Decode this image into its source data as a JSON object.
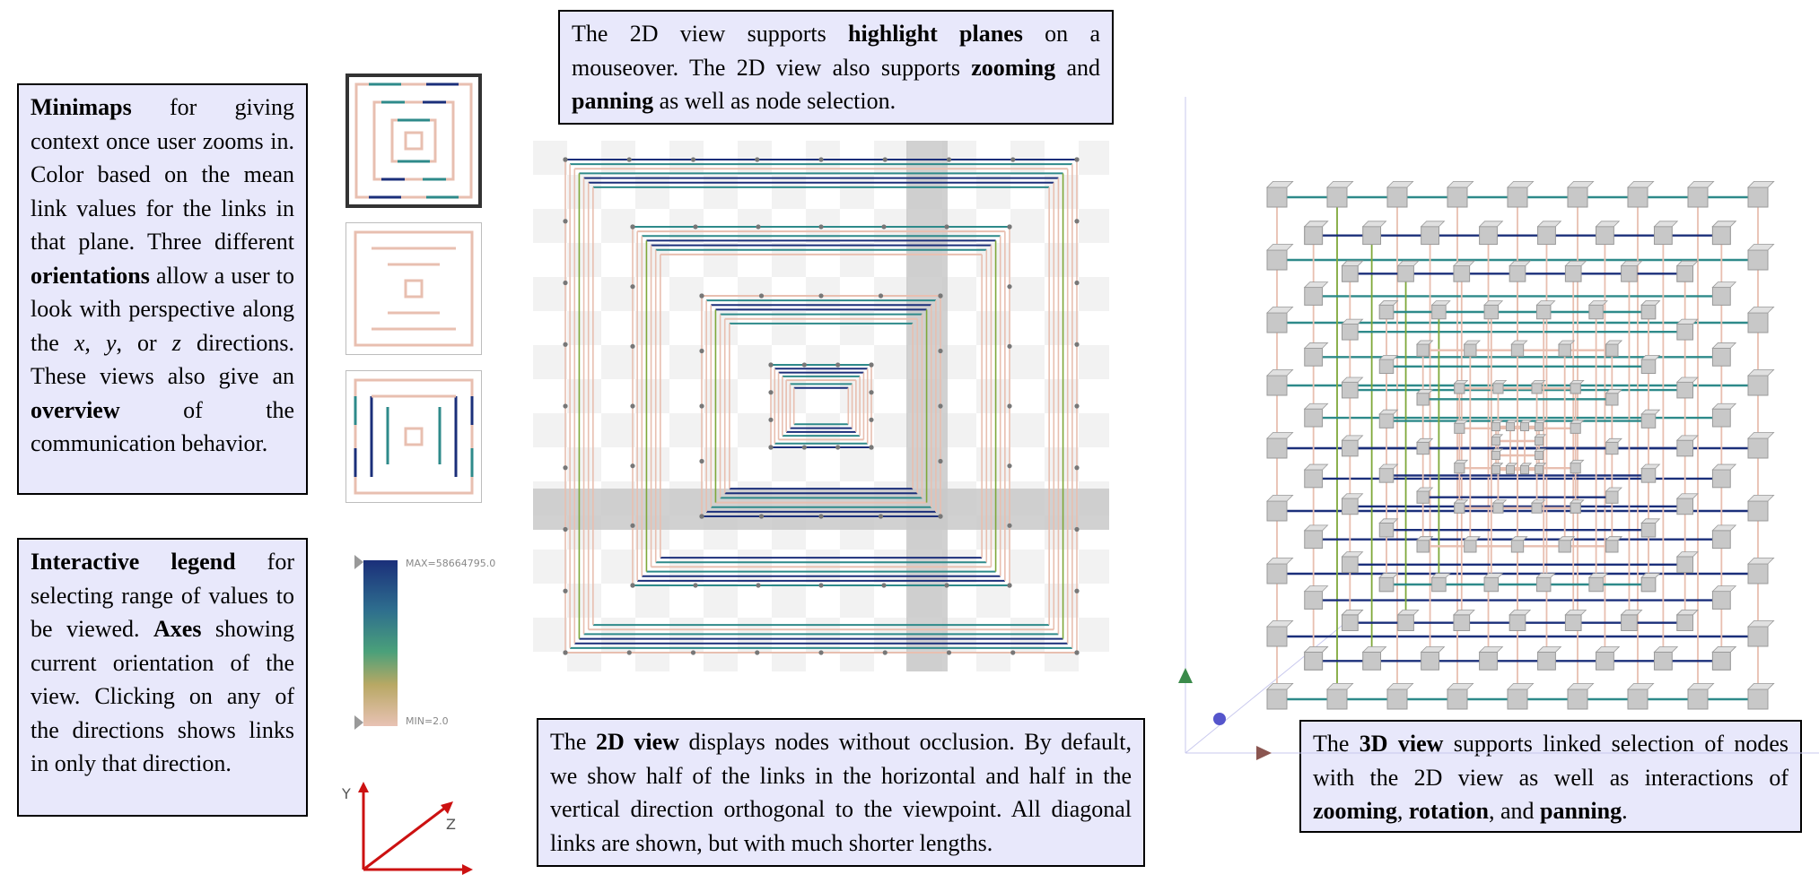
{
  "notes": {
    "minimaps": {
      "s1": "Minimaps",
      "s2": " for giving context once user zooms in. Color based on the mean link values for the links in that plane. Three different ",
      "s3": "orientations",
      "s4": " allow a user to look with perspective along the ",
      "x": "x",
      "s5": ", ",
      "y": "y",
      "s6": ", or ",
      "z": "z",
      "s7": " directions. These views also give an ",
      "s8": "overview",
      "s9": " of the communication behavior."
    },
    "legend": {
      "s1": "Interactive legend",
      "s2": " for selecting range of values to be viewed. ",
      "s3": "Axes",
      "s4": " showing current orientation of the view. Clicking on any of the directions shows links in only that direction."
    },
    "highlight": {
      "s1": "The 2D view supports ",
      "s2": "highlight planes",
      "s3": " on a mouseover. The 2D view also supports ",
      "s4": "zooming",
      "s5": " and ",
      "s6": "panning",
      "s7": " as well as node selection."
    },
    "view2d": {
      "s1": "The ",
      "s2": "2D view",
      "s3": " displays nodes without occlusion. By default, we show half of the links in the horizontal and half in the vertical direction orthogonal to the viewpoint. All diagonal links are shown, but with much shorter lengths."
    },
    "view3d": {
      "s1": "The ",
      "s2": "3D view",
      "s3": " supports linked selection of nodes with the 2D view as well as interactions of ",
      "s4": "zooming",
      "s5": ", ",
      "s6": "rotation",
      "s7": ", and ",
      "s8": "panning",
      "s9": "."
    }
  },
  "legend_widget": {
    "max_label": "MAX=58664795.0",
    "min_label": "MIN=2.0"
  },
  "axes": {
    "y_label": "Y",
    "z_label": "Z"
  },
  "colors": {
    "note_bg": "#e8e8fb",
    "link_low": "#e8bfb0",
    "link_mid": "#2e8a8a",
    "link_high": "#1b2f7a",
    "link_green": "#7fa83a",
    "highlight_band": "#c9c9c9",
    "axis_red": "#cc1111",
    "cube": "#c8c8c8",
    "cone_green": "#3a8a4a",
    "sphere_blue": "#5555cc",
    "cone_brown": "#8a5550"
  }
}
